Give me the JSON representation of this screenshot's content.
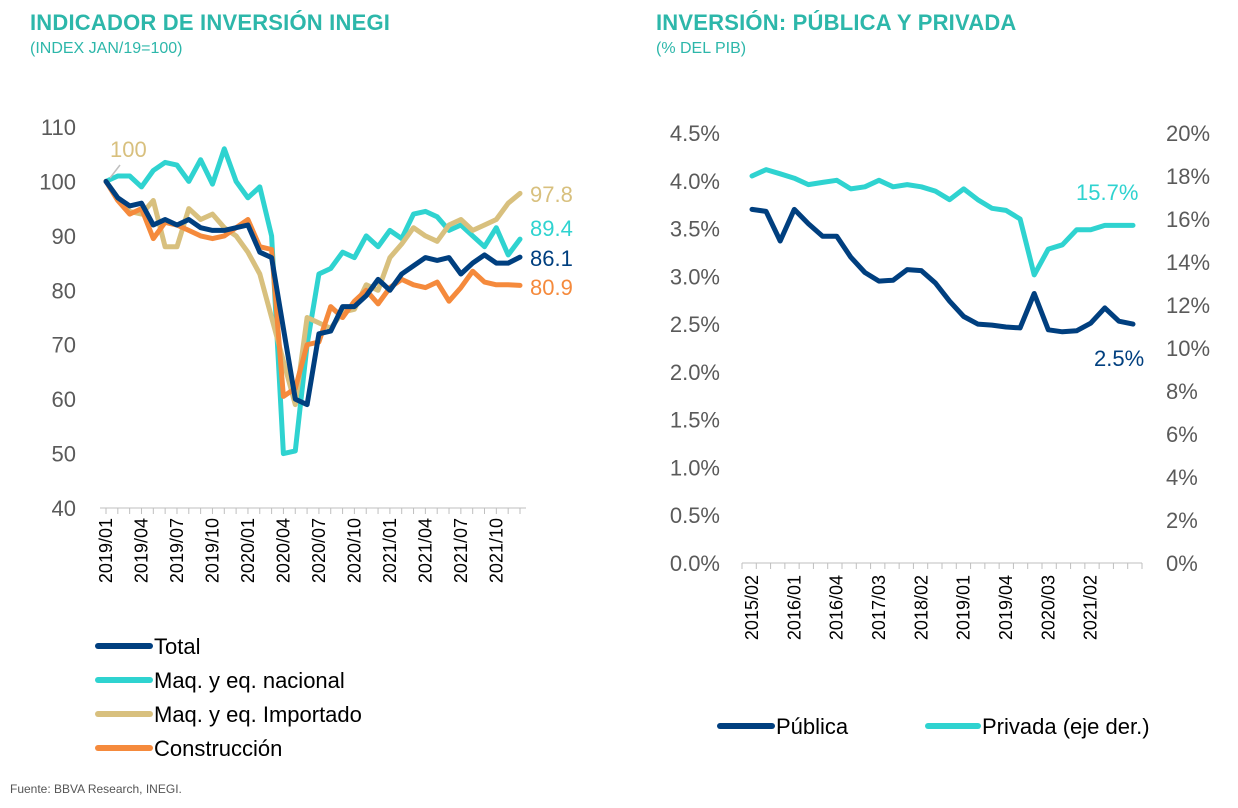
{
  "colors": {
    "total": "#003F7F",
    "nacional": "#2FD3D0",
    "importado": "#D8C07E",
    "construccion": "#F58A3C",
    "title": "#2DB7AA",
    "axis": "#BFBFBF"
  },
  "source": "Fuente: BBVA Research, INEGI.",
  "chart_data": [
    {
      "type": "line",
      "title": "INDICADOR DE INVERSIÓN INEGI",
      "subtitle": "(INDEX JAN/19=100)",
      "xlabel": "",
      "ylabel": "",
      "ylim": [
        40,
        110
      ],
      "yticks": [
        "110",
        "100",
        "90",
        "80",
        "70",
        "60",
        "50",
        "40"
      ],
      "x_tick_labels": [
        "2019/01",
        "2019/04",
        "2019/07",
        "2019/10",
        "2020/01",
        "2020/04",
        "2020/07",
        "2020/10",
        "2021/01",
        "2021/04",
        "2021/07",
        "2021/10"
      ],
      "x": [
        "2019/01",
        "2019/02",
        "2019/03",
        "2019/04",
        "2019/05",
        "2019/06",
        "2019/07",
        "2019/08",
        "2019/09",
        "2019/10",
        "2019/11",
        "2019/12",
        "2020/01",
        "2020/02",
        "2020/03",
        "2020/04",
        "2020/05",
        "2020/06",
        "2020/07",
        "2020/08",
        "2020/09",
        "2020/10",
        "2020/11",
        "2020/12",
        "2021/01",
        "2021/02",
        "2021/03",
        "2021/04",
        "2021/05",
        "2021/06",
        "2021/07",
        "2021/08",
        "2021/09",
        "2021/10",
        "2021/11",
        "2021/12"
      ],
      "series": [
        {
          "name": "Total",
          "key": "total",
          "values": [
            100,
            97,
            95.5,
            96,
            92,
            93,
            92,
            93,
            91.5,
            91,
            91,
            91.5,
            92,
            87,
            86,
            73,
            60,
            59,
            72,
            72.5,
            77,
            77,
            79,
            82,
            80,
            83,
            84.5,
            86,
            85.5,
            86,
            83,
            85,
            86.5,
            85,
            85,
            86.1
          ]
        },
        {
          "name": "Maq. y eq. nacional",
          "key": "nacional",
          "values": [
            100,
            101,
            101,
            99,
            102,
            103.5,
            103,
            100,
            104,
            99.5,
            106,
            100,
            97,
            99,
            90,
            50,
            50.5,
            70,
            83,
            84,
            87,
            86,
            90,
            88,
            91,
            89.5,
            94,
            94.5,
            93.5,
            91,
            92,
            90,
            88,
            91.5,
            86.5,
            89.4
          ]
        },
        {
          "name": "Maq. y eq. Importado",
          "key": "importado",
          "values": [
            100,
            97,
            94.5,
            94,
            96.5,
            88,
            88,
            95,
            93,
            94,
            91.5,
            90,
            87,
            83,
            75,
            67,
            59,
            75,
            74,
            73,
            76,
            76.5,
            81,
            80,
            86,
            88.5,
            91.5,
            90,
            89,
            92,
            93,
            91,
            92,
            93,
            96,
            97.8
          ]
        },
        {
          "name": "Construcción",
          "key": "construccion",
          "values": [
            100,
            96.5,
            94,
            95,
            89.5,
            92.5,
            92,
            91,
            90,
            89.5,
            90,
            91.5,
            93,
            88,
            87.5,
            60.5,
            62,
            70,
            70.5,
            77,
            75,
            78,
            80,
            77.5,
            80.5,
            82,
            81,
            80.5,
            81.5,
            78,
            80.5,
            83.5,
            81.5,
            81,
            81,
            80.9
          ]
        }
      ],
      "annotations": [
        {
          "key": "importado_start",
          "text": "100"
        },
        {
          "key": "importado",
          "text": "97.8"
        },
        {
          "key": "nacional",
          "text": "89.4"
        },
        {
          "key": "total",
          "text": "86.1"
        },
        {
          "key": "construccion",
          "text": "80.9"
        }
      ],
      "legend": "bottom"
    },
    {
      "type": "line",
      "title": "INVERSIÓN: PÚBLICA Y PRIVADA",
      "subtitle": "(% DEL PIB)",
      "xlabel": "",
      "ylabel": "",
      "ylim": [
        0,
        4.5
      ],
      "ylim_right": [
        0,
        20
      ],
      "yticks_left": [
        "4.5%",
        "4.0%",
        "3.5%",
        "3.0%",
        "2.5%",
        "2.0%",
        "1.5%",
        "1.0%",
        "0.5%",
        "0.0%"
      ],
      "yticks_right": [
        "20%",
        "18%",
        "16%",
        "14%",
        "12%",
        "10%",
        "8%",
        "6%",
        "4%",
        "2%",
        "0%"
      ],
      "x_tick_labels": [
        "2015/02",
        "2016/01",
        "2016/04",
        "2017/03",
        "2018/02",
        "2019/01",
        "2019/04",
        "2020/03",
        "2021/02"
      ],
      "x": [
        "2015/02",
        "2015/03",
        "2015/04",
        "2016/01",
        "2016/02",
        "2016/03",
        "2016/04",
        "2017/01",
        "2017/02",
        "2017/03",
        "2017/04",
        "2018/01",
        "2018/02",
        "2018/03",
        "2018/04",
        "2019/01",
        "2019/02",
        "2019/03",
        "2019/04",
        "2020/01",
        "2020/02",
        "2020/03",
        "2020/04",
        "2021/01",
        "2021/02",
        "2021/03",
        "2021/04",
        "2022/01"
      ],
      "series": [
        {
          "name": "Pública",
          "key": "publica",
          "axis": "left",
          "values": [
            3.7,
            3.68,
            3.37,
            3.7,
            3.55,
            3.42,
            3.42,
            3.2,
            3.04,
            2.95,
            2.96,
            3.07,
            3.06,
            2.93,
            2.74,
            2.58,
            2.5,
            2.49,
            2.47,
            2.46,
            2.82,
            2.44,
            2.42,
            2.43,
            2.51,
            2.67,
            2.53,
            2.5
          ]
        },
        {
          "name": "Privada (eje der.)",
          "key": "privada",
          "axis": "right",
          "values": [
            18.0,
            18.3,
            18.1,
            17.9,
            17.6,
            17.7,
            17.8,
            17.4,
            17.5,
            17.8,
            17.5,
            17.6,
            17.5,
            17.3,
            16.9,
            17.4,
            16.9,
            16.5,
            16.4,
            16.0,
            13.4,
            14.6,
            14.8,
            15.5,
            15.5,
            15.7,
            15.7,
            15.7
          ]
        }
      ],
      "annotations": [
        {
          "key": "privada",
          "text": "15.7%"
        },
        {
          "key": "publica",
          "text": "2.5%"
        }
      ],
      "legend": "bottom"
    }
  ]
}
